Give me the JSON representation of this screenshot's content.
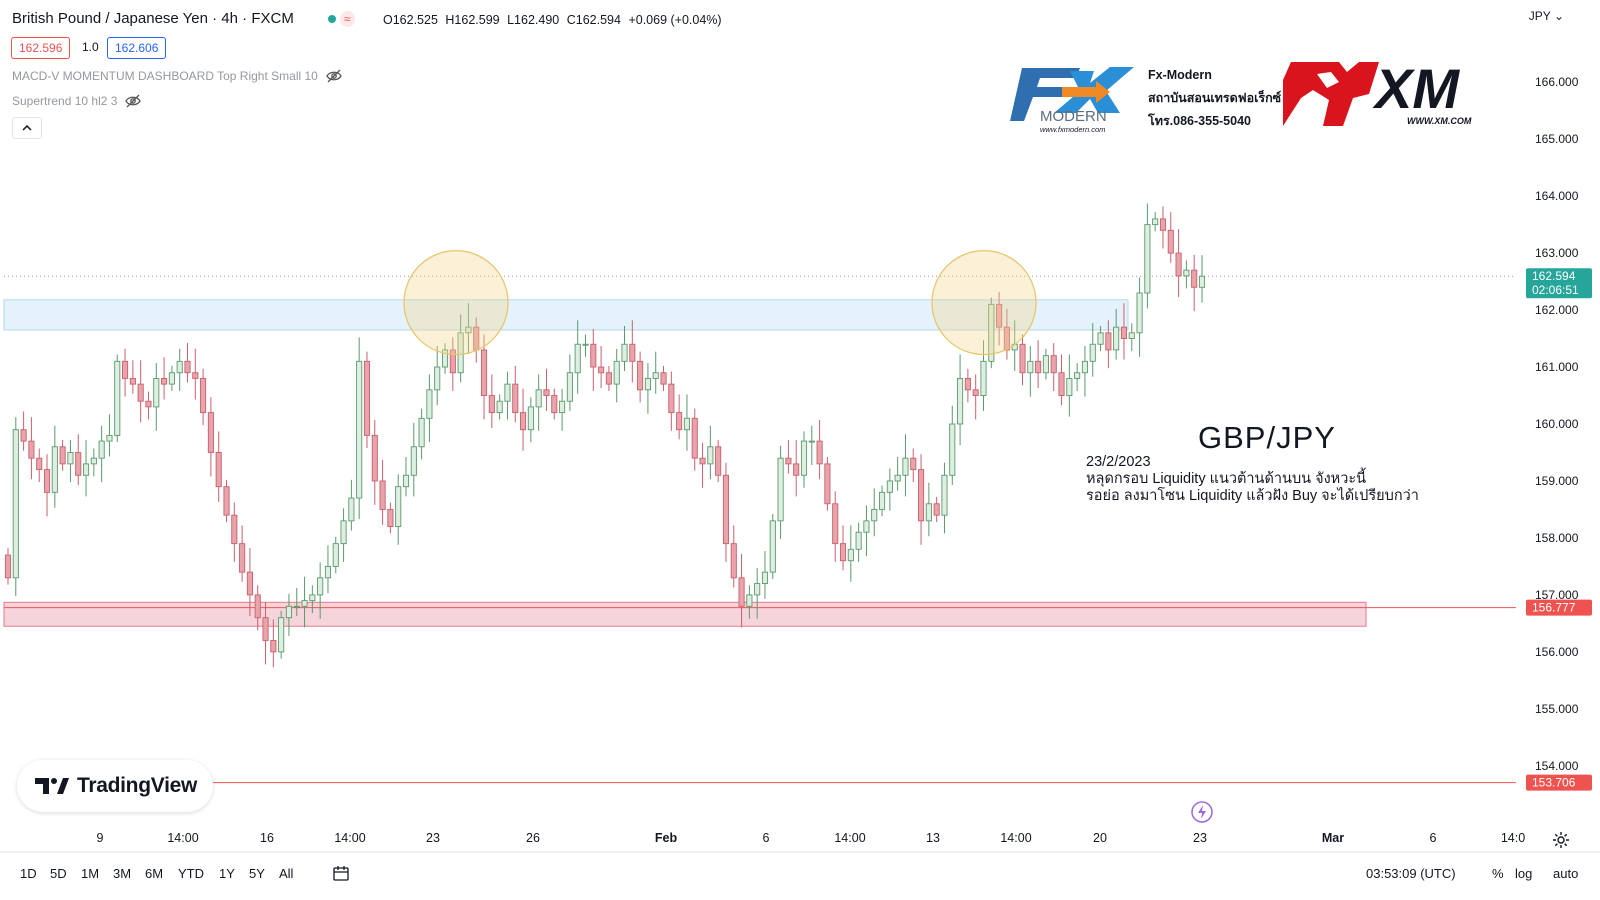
{
  "header": {
    "title": "British Pound / Japanese Yen · 4h · FXCM",
    "ohlc": {
      "o": "O162.525",
      "h": "H162.599",
      "l": "L162.490",
      "c": "C162.594",
      "change": "+0.069 (+0.04%)"
    },
    "bid": "162.596",
    "spread": "1.0",
    "ask": "162.606",
    "currency": "JPY"
  },
  "indicators": [
    {
      "name": "MACD-V MOMENTUM DASHBOARD Top Right Small 10",
      "icon": "eye-hidden-icon"
    },
    {
      "name": "Supertrend 10 hl2 3",
      "icon": "eye-hidden-icon"
    }
  ],
  "branding": {
    "fx_lines": [
      "Fx-Modern",
      "สถาบันสอนเทรดฟอเร็กซ์",
      "โทร.086-355-5040"
    ],
    "fx_logo_text": "MODERN",
    "fx_url": "www.fxmodern.com",
    "xm_logo_text": "XM",
    "xm_url": "WWW.XM.COM",
    "tradingview": "TradingView"
  },
  "annotation": {
    "title": "GBP/JPY",
    "date": "23/2/2023",
    "line1": "หลุดกรอบ Liquidity แนวต้านด้านบน จังหวะนี้",
    "line2": "รอย่อ ลงมาโซน Liquidity แล้วฝัง Buy จะได้เปรียบกว่า"
  },
  "chart_data": {
    "type": "candlestick",
    "symbol": "GBPJPY",
    "timeframe": "4h",
    "ylim": [
      153.4,
      166.6
    ],
    "y_ticks": [
      "166.000",
      "165.000",
      "164.000",
      "163.000",
      "162.000",
      "161.000",
      "160.000",
      "159.000",
      "158.000",
      "157.000",
      "156.000",
      "155.000",
      "154.000"
    ],
    "x_ticks": [
      "9",
      "14:00",
      "16",
      "14:00",
      "23",
      "26",
      "Feb",
      "6",
      "14:00",
      "13",
      "14:00",
      "20",
      "23",
      "Mar",
      "6",
      "14:0"
    ],
    "price_labels": [
      {
        "value": 162.594,
        "text": "162.594",
        "sub": "02:06:51",
        "color": "#26a69a"
      },
      {
        "value": 156.777,
        "text": "156.777",
        "color": "#ef5350"
      },
      {
        "value": 153.706,
        "text": "153.706",
        "color": "#ef5350"
      }
    ],
    "zones": [
      {
        "name": "upper-liquidity-zone",
        "from": 161.65,
        "to": 162.18,
        "fill": "#e3f2fb",
        "stroke": "#b3d8ee"
      },
      {
        "name": "lower-liquidity-zone",
        "from": 156.45,
        "to": 156.87,
        "fill": "#f5d5db",
        "stroke": "#e57a8c"
      }
    ],
    "highlights": [
      {
        "price": 161.85
      },
      {
        "price": 161.85
      }
    ],
    "closes": [
      157.3,
      159.9,
      159.7,
      159.4,
      159.2,
      158.8,
      159.6,
      159.3,
      159.5,
      159.1,
      159.3,
      159.4,
      159.7,
      159.8,
      161.1,
      160.8,
      160.7,
      160.4,
      160.3,
      160.8,
      160.7,
      160.9,
      161.1,
      160.9,
      160.8,
      160.2,
      159.5,
      158.9,
      158.4,
      157.9,
      157.4,
      157.0,
      156.6,
      156.2,
      156.0,
      156.6,
      156.8,
      156.8,
      156.9,
      157.0,
      157.3,
      157.5,
      157.9,
      158.3,
      158.7,
      161.1,
      159.8,
      159.0,
      158.5,
      158.2,
      158.9,
      159.1,
      159.6,
      160.1,
      160.6,
      161.0,
      161.3,
      160.9,
      161.6,
      161.7,
      161.3,
      160.5,
      160.2,
      160.4,
      160.7,
      160.2,
      159.9,
      160.3,
      160.6,
      160.5,
      160.2,
      160.4,
      160.9,
      161.4,
      161.4,
      161.0,
      160.9,
      160.7,
      161.1,
      161.4,
      161.1,
      160.6,
      160.8,
      160.9,
      160.7,
      160.2,
      159.9,
      160.1,
      159.4,
      159.3,
      159.6,
      159.1,
      157.9,
      157.3,
      156.8,
      157.0,
      157.2,
      157.4,
      158.3,
      159.4,
      159.3,
      159.1,
      159.7,
      159.7,
      159.3,
      158.6,
      157.9,
      157.6,
      157.8,
      158.1,
      158.3,
      158.5,
      158.8,
      159.0,
      159.1,
      159.4,
      159.2,
      158.3,
      158.6,
      158.4,
      159.1,
      160.0,
      160.8,
      160.6,
      160.5,
      161.1,
      162.1,
      161.7,
      161.3,
      161.4,
      160.9,
      161.1,
      160.9,
      161.2,
      160.9,
      160.5,
      160.8,
      160.9,
      161.1,
      161.4,
      161.6,
      161.3,
      161.7,
      161.5,
      161.6,
      162.3,
      163.5,
      163.6,
      163.4,
      163.0,
      162.6,
      162.7,
      162.4,
      162.594
    ]
  }
}
